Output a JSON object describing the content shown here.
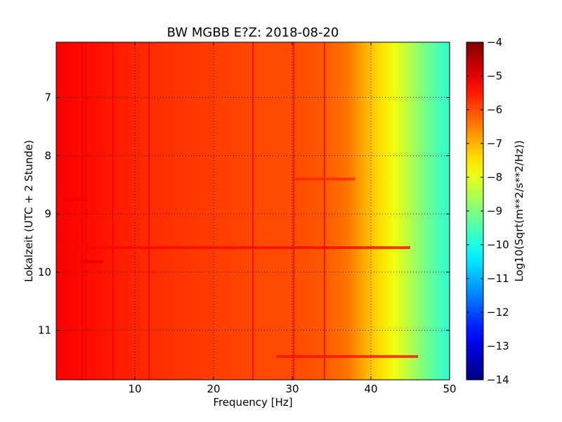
{
  "chart_data": {
    "type": "heatmap",
    "title": "BW MGBB E?Z: 2018-08-20",
    "xlabel": "Frequency [Hz]",
    "ylabel": "Lokalzeit (UTC + 2 Stunde)",
    "colorbar_label": "Log10(Sqrt(m**2/s**2/Hz))",
    "colormap": "jet",
    "xlim": [
      0,
      50
    ],
    "ylim": [
      11.85,
      6.05
    ],
    "y_axis_inverted": true,
    "clim": [
      -14,
      -4
    ],
    "grid": true,
    "x_ticks": [
      10,
      20,
      30,
      40,
      50
    ],
    "x_tick_labels": [
      "10",
      "20",
      "30",
      "40",
      "50"
    ],
    "y_ticks": [
      7,
      8,
      9,
      10,
      11
    ],
    "y_tick_labels": [
      "7",
      "8",
      "9",
      "10",
      "11"
    ],
    "colorbar_ticks": [
      -4,
      -5,
      -6,
      -7,
      -8,
      -9,
      -10,
      -11,
      -12,
      -13,
      -14
    ],
    "colorbar_tick_labels": [
      "−4",
      "−5",
      "−6",
      "−7",
      "−8",
      "−9",
      "−10",
      "−11",
      "−12",
      "−13",
      "−14"
    ],
    "spectrum_profile": {
      "frequency_hz": [
        0,
        5,
        10,
        15,
        20,
        25,
        30,
        34,
        37,
        39,
        41,
        43,
        45,
        47,
        49,
        50
      ],
      "level": [
        -5.2,
        -5.4,
        -5.6,
        -5.75,
        -5.85,
        -5.95,
        -6.0,
        -6.1,
        -6.4,
        -6.9,
        -7.4,
        -7.9,
        -8.5,
        -9.1,
        -9.6,
        -9.8
      ]
    },
    "vertical_lines_hz": [
      3.3,
      3.8,
      7.2,
      11.8,
      25.0,
      30.2,
      34.1
    ],
    "horizontal_bands": [
      {
        "time": 9.58,
        "fmin": 0,
        "fmax": 45,
        "level": -5.3
      },
      {
        "time": 11.45,
        "fmin": 28,
        "fmax": 46,
        "level": -5.4
      },
      {
        "time": 8.4,
        "fmin": 30,
        "fmax": 38,
        "level": -5.6
      },
      {
        "time": 9.82,
        "fmin": 3,
        "fmax": 6,
        "level": -5.0
      },
      {
        "time": 8.75,
        "fmin": 1,
        "fmax": 4,
        "level": -5.1
      }
    ]
  }
}
